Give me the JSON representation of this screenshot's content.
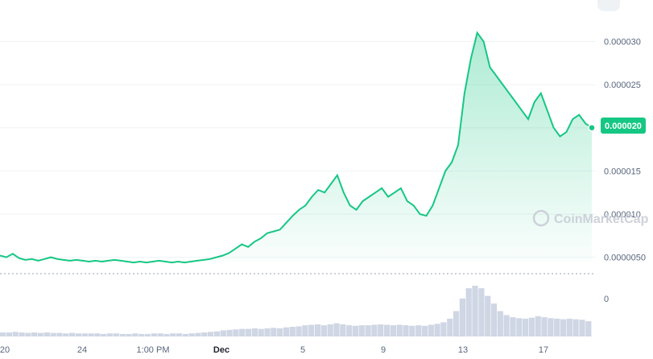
{
  "watermark": "CoinMarketCap",
  "colors": {
    "line": "#16c784",
    "fill_top": "#16c784",
    "volume": "#cfd6e4",
    "grid": "#eff2f5",
    "badge": "#16c784"
  },
  "chart_data": {
    "type": "area",
    "title": "",
    "xlabel": "",
    "ylabel": "",
    "x_ticks": [
      "20",
      "24",
      "1:00 PM",
      "Dec",
      "5",
      "9",
      "13",
      "17"
    ],
    "y_ticks": [
      "0.0000050",
      "0.000010",
      "0.000015",
      "0.000020",
      "0.000025",
      "0.000030"
    ],
    "volume_ticks": [
      "0"
    ],
    "ylim": [
      4.5e-06,
      3.2e-05
    ],
    "current_price": "0.000020",
    "series": [
      {
        "values": [
          5.2e-06,
          5e-06,
          5.4e-06,
          4.9e-06,
          4.7e-06,
          4.8e-06,
          4.6e-06,
          4.8e-06,
          5e-06,
          4.8e-06,
          4.7e-06,
          4.6e-06,
          4.7e-06,
          4.6e-06,
          4.5e-06,
          4.6e-06,
          4.5e-06,
          4.6e-06,
          4.7e-06,
          4.6e-06,
          4.5e-06,
          4.4e-06,
          4.5e-06,
          4.4e-06,
          4.5e-06,
          4.6e-06,
          4.5e-06,
          4.4e-06,
          4.5e-06,
          4.4e-06,
          4.5e-06,
          4.6e-06,
          4.7e-06,
          4.8e-06,
          5e-06,
          5.2e-06,
          5.5e-06,
          6e-06,
          6.5e-06,
          6.2e-06,
          6.8e-06,
          7.2e-06,
          7.8e-06,
          8e-06,
          8.2e-06,
          9e-06,
          9.8e-06,
          1.05e-05,
          1.1e-05,
          1.2e-05,
          1.28e-05,
          1.25e-05,
          1.35e-05,
          1.45e-05,
          1.25e-05,
          1.1e-05,
          1.05e-05,
          1.15e-05,
          1.2e-05,
          1.25e-05,
          1.3e-05,
          1.2e-05,
          1.25e-05,
          1.3e-05,
          1.15e-05,
          1.1e-05,
          1e-05,
          9.8e-06,
          1.1e-05,
          1.3e-05,
          1.5e-05,
          1.6e-05,
          1.8e-05,
          2.4e-05,
          2.8e-05,
          3.1e-05,
          3e-05,
          2.7e-05,
          2.6e-05,
          2.5e-05,
          2.4e-05,
          2.3e-05,
          2.2e-05,
          2.1e-05,
          2.3e-05,
          2.4e-05,
          2.2e-05,
          2e-05,
          1.9e-05,
          1.95e-05,
          2.1e-05,
          2.15e-05,
          2.05e-05,
          2e-05
        ]
      }
    ],
    "volume": [
      0.08,
      0.08,
      0.09,
      0.08,
      0.07,
      0.08,
      0.07,
      0.08,
      0.07,
      0.07,
      0.06,
      0.07,
      0.06,
      0.06,
      0.06,
      0.06,
      0.05,
      0.06,
      0.06,
      0.05,
      0.05,
      0.06,
      0.05,
      0.05,
      0.06,
      0.06,
      0.05,
      0.06,
      0.06,
      0.05,
      0.06,
      0.07,
      0.08,
      0.09,
      0.1,
      0.12,
      0.13,
      0.14,
      0.15,
      0.15,
      0.16,
      0.15,
      0.16,
      0.17,
      0.16,
      0.18,
      0.19,
      0.2,
      0.22,
      0.23,
      0.24,
      0.22,
      0.24,
      0.26,
      0.24,
      0.22,
      0.21,
      0.22,
      0.22,
      0.23,
      0.24,
      0.23,
      0.22,
      0.23,
      0.22,
      0.21,
      0.22,
      0.21,
      0.23,
      0.25,
      0.28,
      0.35,
      0.5,
      0.75,
      0.95,
      1.0,
      0.95,
      0.8,
      0.65,
      0.5,
      0.42,
      0.38,
      0.36,
      0.35,
      0.37,
      0.4,
      0.38,
      0.36,
      0.35,
      0.34,
      0.35,
      0.34,
      0.33,
      0.3
    ]
  }
}
